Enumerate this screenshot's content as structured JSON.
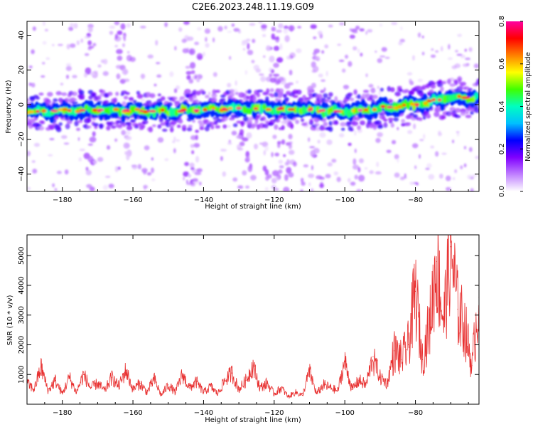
{
  "title": "C2E6.2023.248.11.19.G09",
  "chart_data": [
    {
      "type": "heatmap",
      "title": "C2E6.2023.248.11.19.G09",
      "xlabel": "Height of straight line (km)",
      "ylabel": "Frequency (Hz)",
      "xlim": [
        -190,
        -62
      ],
      "ylim": [
        -50,
        48
      ],
      "x_ticks": [
        -180,
        -160,
        -140,
        -120,
        -100,
        -80
      ],
      "y_ticks": [
        -40,
        -20,
        0,
        20,
        40
      ],
      "trend_line": {
        "x": [
          -190,
          -170,
          -150,
          -130,
          -110,
          -100,
          -90,
          -80,
          -70,
          -62
        ],
        "y": [
          -4,
          -3,
          -4,
          -2,
          -3,
          -4,
          -2,
          0,
          4,
          4
        ]
      },
      "colorbar": {
        "label": "Normalized spectral amplitude",
        "range": [
          0,
          0.8
        ],
        "ticks": [
          0.0,
          0.2,
          0.4,
          0.6,
          0.8
        ],
        "colors": [
          "#ffffff",
          "#c080ff",
          "#8000ff",
          "#0000ff",
          "#00c0ff",
          "#00ffc0",
          "#40ff00",
          "#ffff00",
          "#ff8000",
          "#ff0000",
          "#ff00a0"
        ]
      }
    },
    {
      "type": "line",
      "xlabel": "Height of straight line (km)",
      "ylabel": "SNR (10 * v/v)",
      "xlim": [
        -190,
        -62
      ],
      "ylim": [
        0,
        5700
      ],
      "x_ticks": [
        -180,
        -160,
        -140,
        -120,
        -100,
        -80
      ],
      "y_ticks": [
        1000,
        2000,
        3000,
        4000,
        5000
      ],
      "series": [
        {
          "color": "#e83030",
          "x": [
            -190,
            -188,
            -186,
            -184,
            -182,
            -180,
            -178,
            -176,
            -174,
            -172,
            -170,
            -168,
            -166,
            -164,
            -162,
            -160,
            -158,
            -156,
            -154,
            -152,
            -150,
            -148,
            -146,
            -144,
            -142,
            -140,
            -138,
            -136,
            -134,
            -132,
            -130,
            -128,
            -126,
            -124,
            -122,
            -120,
            -118,
            -116,
            -114,
            -112,
            -110,
            -108,
            -106,
            -104,
            -102,
            -100,
            -98,
            -96,
            -94,
            -92,
            -90,
            -88,
            -86,
            -84,
            -82,
            -80,
            -78,
            -76,
            -74,
            -72,
            -70,
            -68,
            -66,
            -64,
            -62
          ],
          "y": [
            700,
            500,
            1250,
            450,
            800,
            350,
            900,
            400,
            1000,
            550,
            700,
            450,
            900,
            600,
            1150,
            500,
            700,
            400,
            850,
            300,
            650,
            400,
            1000,
            550,
            750,
            400,
            600,
            350,
            800,
            1050,
            500,
            800,
            1300,
            550,
            700,
            350,
            550,
            250,
            400,
            300,
            1100,
            350,
            650,
            550,
            450,
            1450,
            500,
            800,
            650,
            1600,
            900,
            700,
            1800,
            1500,
            2000,
            3800,
            1500,
            2700,
            4800,
            2800,
            5300,
            3200,
            2600,
            1300,
            3600
          ]
        }
      ]
    }
  ]
}
